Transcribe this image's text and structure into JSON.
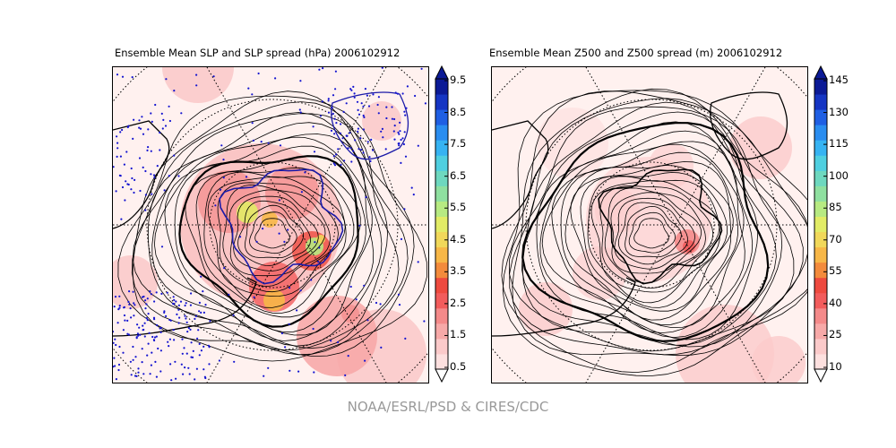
{
  "footer": "NOAA/ESRL/PSD & CIRES/CDC",
  "chart_data": [
    {
      "type": "heatmap",
      "title": "Ensemble Mean SLP and SLP spread (hPa) 2006102912",
      "projection": "south polar stereographic",
      "fill_variable": "SLP spread",
      "contour_variable": "Ensemble Mean SLP",
      "units": "hPa",
      "colorbar": {
        "ticks": [
          "0.5",
          "1.5",
          "2.5",
          "3.5",
          "4.5",
          "5.5",
          "6.5",
          "7.5",
          "8.5",
          "9.5"
        ],
        "levels": [
          0.5,
          1.0,
          1.5,
          2.0,
          2.5,
          3.0,
          3.5,
          4.0,
          4.5,
          5.0,
          5.5,
          6.0,
          6.5,
          7.0,
          7.5,
          8.0,
          8.5,
          9.0,
          9.5
        ],
        "colors": [
          "#fde0df",
          "#fbcaca",
          "#f7a9a8",
          "#f48a8a",
          "#f25c5c",
          "#ee4a3f",
          "#f38b3c",
          "#f7b747",
          "#f1d85a",
          "#e2ec66",
          "#b7ea82",
          "#8fe0a0",
          "#6ed8bf",
          "#4fcfe0",
          "#36b3f2",
          "#2a8df0",
          "#1f5fe3",
          "#1535c3",
          "#0b1a96"
        ],
        "extend": "both"
      },
      "overlays": [
        "observation station dots (blue)",
        "coastlines",
        "lat/lon graticule (dotted)"
      ]
    },
    {
      "type": "heatmap",
      "title": "Ensemble Mean Z500 and Z500 spread (m) 2006102912",
      "projection": "south polar stereographic",
      "fill_variable": "Z500 spread",
      "contour_variable": "Ensemble Mean Z500",
      "units": "m",
      "colorbar": {
        "ticks": [
          "10",
          "25",
          "40",
          "55",
          "70",
          "85",
          "100",
          "115",
          "130",
          "145"
        ],
        "levels": [
          10,
          17.5,
          25,
          32.5,
          40,
          47.5,
          55,
          62.5,
          70,
          77.5,
          85,
          92.5,
          100,
          107.5,
          115,
          122.5,
          130,
          137.5,
          145
        ],
        "colors": [
          "#fde0df",
          "#fbcaca",
          "#f7a9a8",
          "#f48a8a",
          "#f25c5c",
          "#ee4a3f",
          "#f38b3c",
          "#f7b747",
          "#f1d85a",
          "#e2ec66",
          "#b7ea82",
          "#8fe0a0",
          "#6ed8bf",
          "#4fcfe0",
          "#36b3f2",
          "#2a8df0",
          "#1f5fe3",
          "#1535c3",
          "#0b1a96"
        ],
        "extend": "both"
      },
      "overlays": [
        "coastlines",
        "lat/lon graticule (dotted)"
      ]
    }
  ]
}
